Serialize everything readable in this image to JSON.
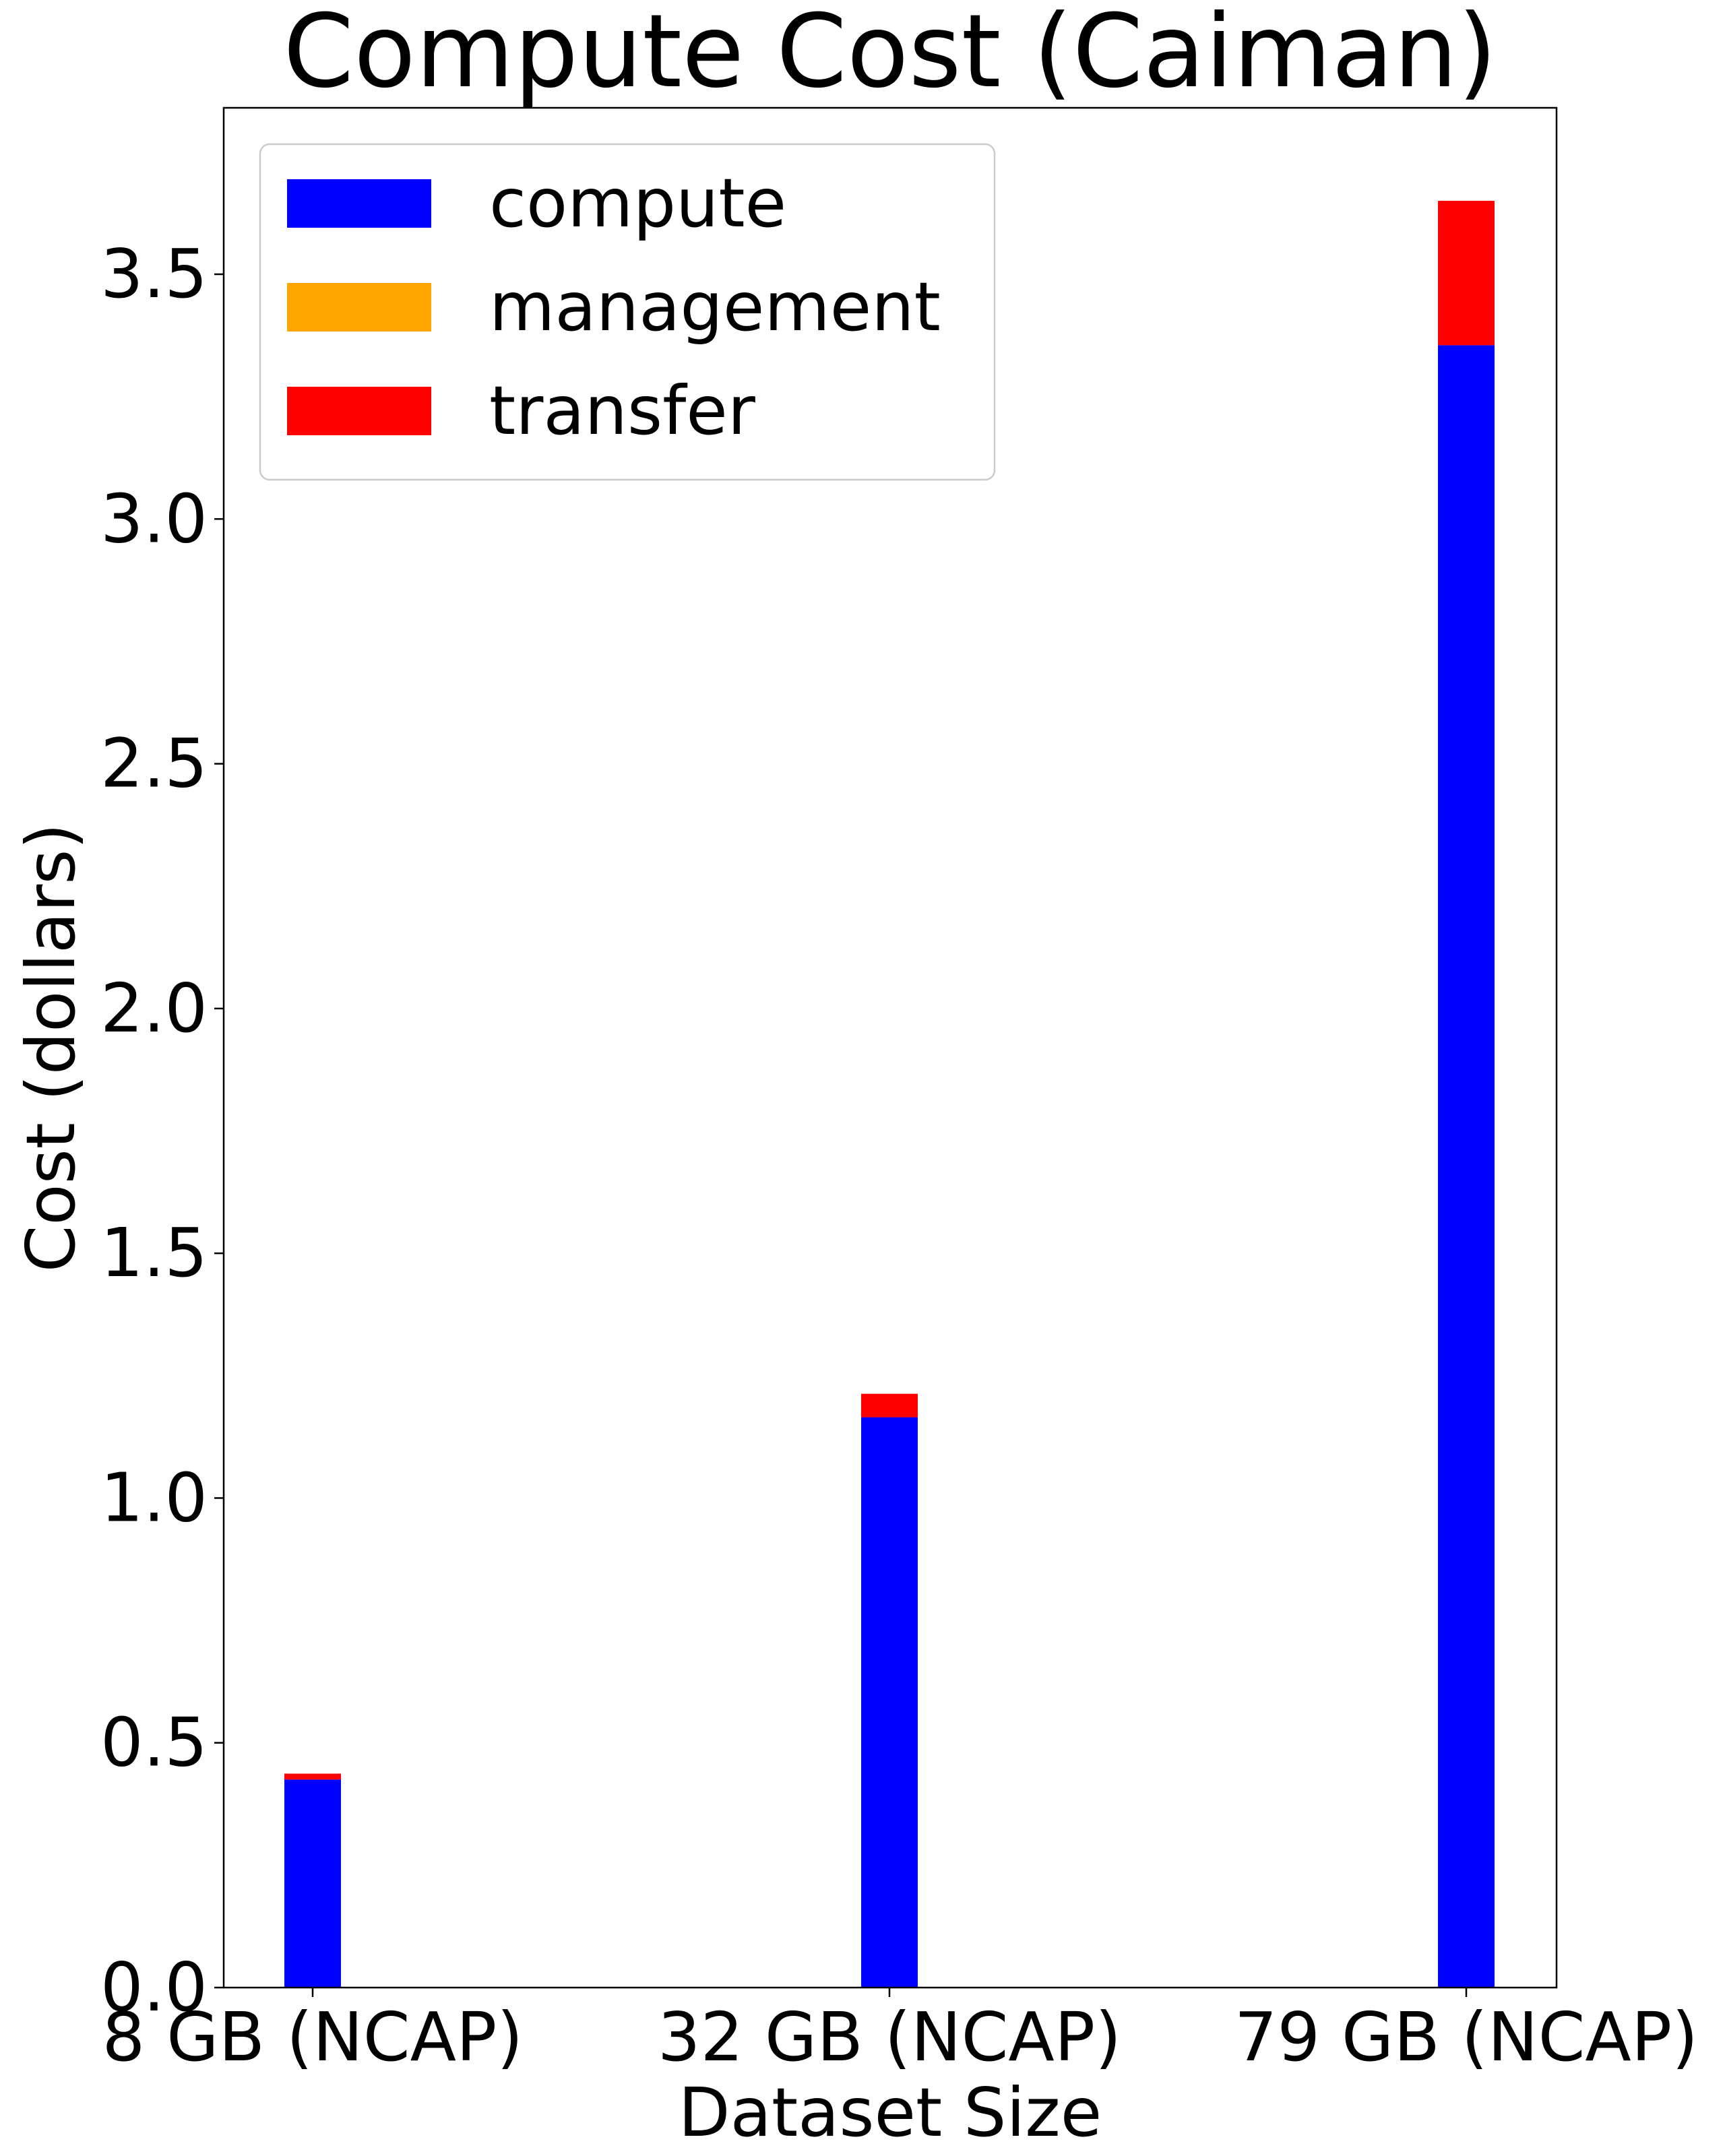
{
  "chart_data": {
    "type": "bar",
    "stacked": true,
    "title": "Compute Cost (Caiman)",
    "xlabel": "Dataset Size",
    "ylabel": "Cost (dollars)",
    "categories": [
      "8 GB (NCAP)",
      "32 GB (NCAP)",
      "79 GB (NCAP)"
    ],
    "ylim": [
      0,
      3.84
    ],
    "yticks": [
      "0.0",
      "0.5",
      "1.0",
      "1.5",
      "2.0",
      "2.5",
      "3.0",
      "3.5"
    ],
    "grid": false,
    "legend_position": "top-left",
    "series": [
      {
        "name": "compute",
        "color": "#0000ff",
        "values": [
          0.425,
          1.165,
          3.355
        ]
      },
      {
        "name": "management",
        "color": "#ffa500",
        "values": [
          0.0,
          0.0,
          0.0
        ]
      },
      {
        "name": "transfer",
        "color": "#ff0000",
        "values": [
          0.012,
          0.048,
          0.295
        ]
      }
    ]
  }
}
